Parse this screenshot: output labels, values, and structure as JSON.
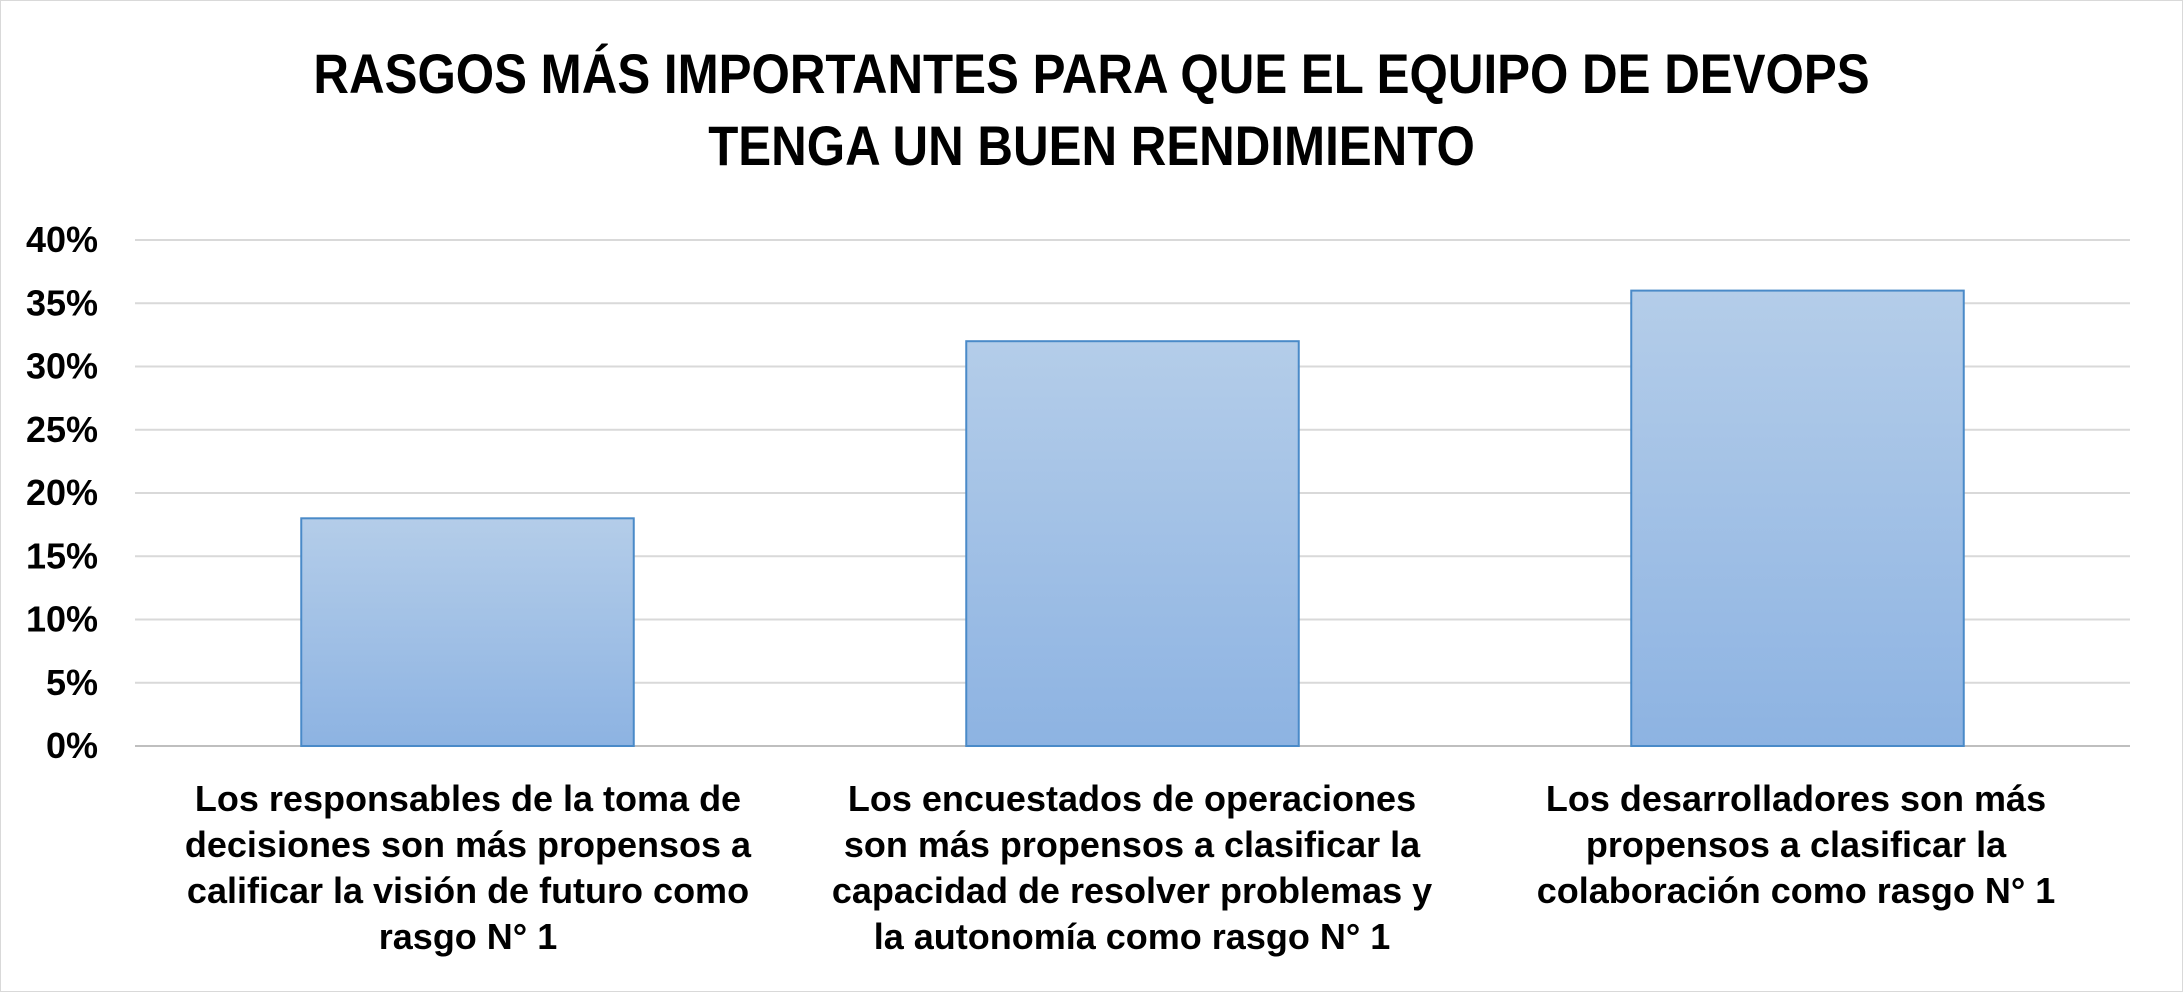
{
  "chart_data": {
    "type": "bar",
    "title_lines": [
      "RASGOS MÁS IMPORTANTES PARA QUE EL EQUIPO DE DEVOPS",
      "TENGA UN BUEN RENDIMIENTO"
    ],
    "categories": [
      "Los responsables de la toma de decisiones son más propensos a calificar la visión de futuro como rasgo N° 1",
      "Los encuestados de operaciones son más propensos a clasificar la capacidad de resolver problemas y la autonomía como rasgo N° 1",
      "Los desarrolladores son más propensos a clasificar la colaboración como rasgo N° 1"
    ],
    "values": [
      18,
      32,
      36
    ],
    "ylim": [
      0,
      40
    ],
    "yticks": [
      "0%",
      "5%",
      "10%",
      "15%",
      "20%",
      "25%",
      "30%",
      "35%",
      "40%"
    ],
    "grid": true,
    "bar_color_top": "#b4cde9",
    "bar_color_bottom": "#8db3e2",
    "bar_border": "#4a8ac8"
  }
}
